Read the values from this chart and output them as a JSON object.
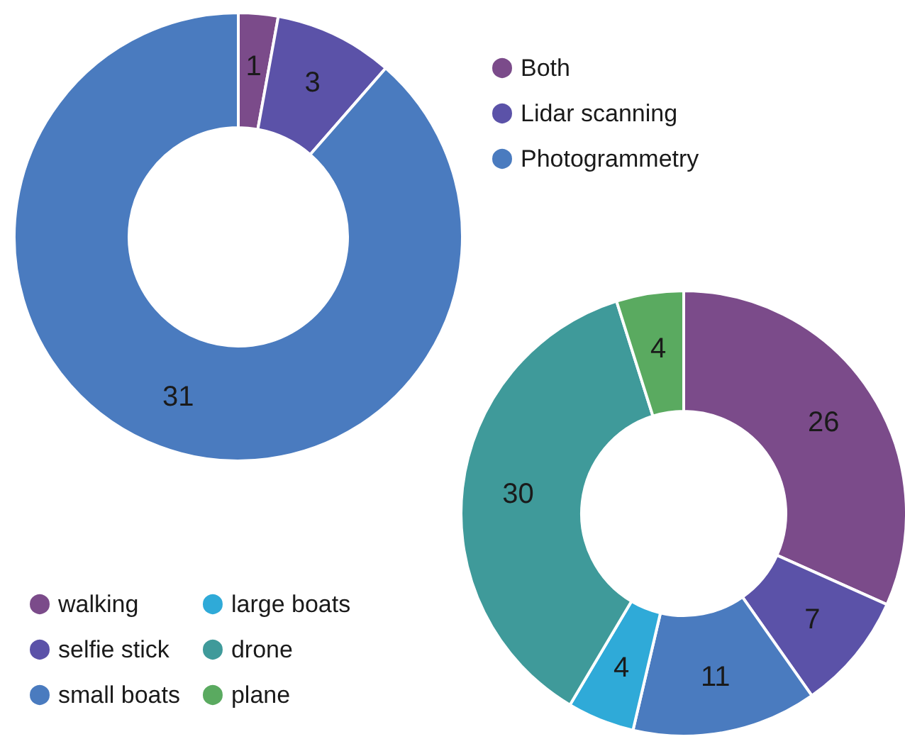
{
  "chart_data": [
    {
      "type": "donut",
      "categories": [
        "Both",
        "Lidar scanning",
        "Photogrammetry"
      ],
      "values": [
        1,
        3,
        31
      ],
      "colors": [
        "#7b4b8a",
        "#5b52a8",
        "#4a7bbf"
      ],
      "data_labels": true,
      "legend": "top right"
    },
    {
      "type": "donut",
      "categories": [
        "walking",
        "selfie stick",
        "small boats",
        "large boats",
        "drone",
        "plane"
      ],
      "values": [
        26,
        7,
        11,
        4,
        30,
        4
      ],
      "colors": [
        "#7b4b8a",
        "#5b52a8",
        "#4a7bbf",
        "#2faad8",
        "#3f9a9a",
        "#5aaa60"
      ],
      "data_labels": true,
      "legend": "bottom left"
    }
  ]
}
